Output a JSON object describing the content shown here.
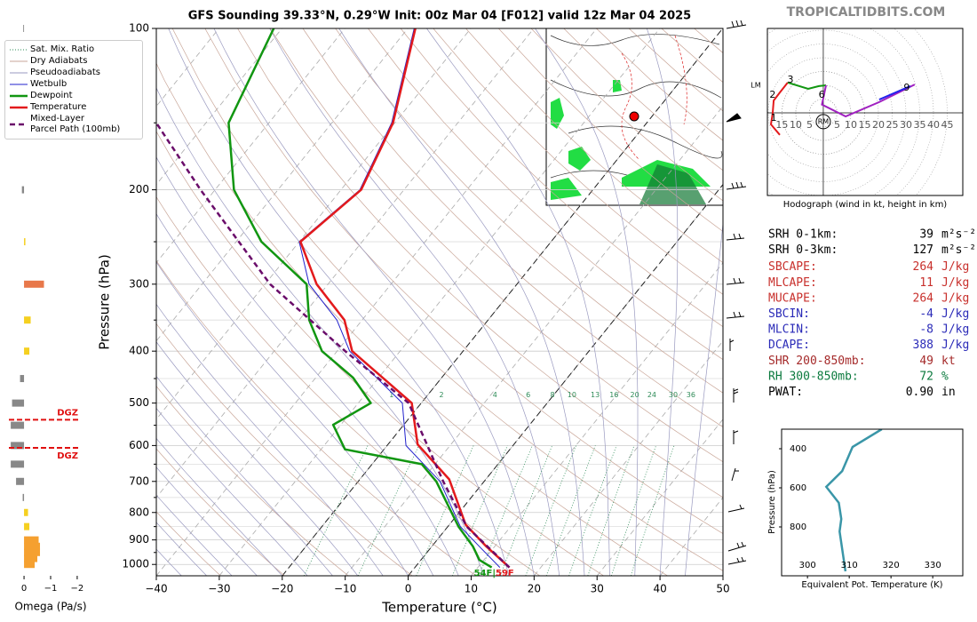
{
  "site": "TROPICALTIDBITS.COM",
  "chart_data": [
    {
      "type": "skewt",
      "title": "GFS Sounding 39.33°N, 0.29°W Init: 00z Mar 04 [F012] valid 12z Mar 04 2025",
      "xlabel": "Temperature (°C)",
      "ylabel": "Pressure (hPa)",
      "xlim": [
        -40,
        50
      ],
      "xticks": [
        {
          "value": -40,
          "label": "−40"
        },
        {
          "value": -30,
          "label": "−30"
        },
        {
          "value": -20,
          "label": "−20"
        },
        {
          "value": -10,
          "label": "−10"
        },
        0,
        10,
        20,
        30,
        40,
        50
      ],
      "ylim": [
        1050,
        100
      ],
      "log_y": true,
      "yticks": [
        100,
        200,
        300,
        400,
        500,
        600,
        700,
        800,
        900,
        1000
      ],
      "yticks_minor": [
        150,
        250,
        350,
        450,
        550,
        650,
        750,
        850,
        950
      ],
      "highlight_isotherms": [
        0,
        -20
      ],
      "mixing_ratios": [
        1,
        2,
        4,
        6,
        8,
        10,
        13,
        16,
        20,
        24,
        30,
        36
      ],
      "background": [
        {
          "name": "Sat. Mix. Ratio",
          "color": "#2e8b57",
          "dash": "1,2"
        },
        {
          "name": "Dry Adiabats",
          "color": "#c9a698",
          "dash": ""
        },
        {
          "name": "Pseudoadiabats",
          "color": "#9a9ac0",
          "dash": ""
        }
      ],
      "series": [
        {
          "name": "Wetbulb",
          "color": "#2222cc",
          "width": 1,
          "dash": "",
          "pressure": [
            1013,
            925,
            850,
            700,
            600,
            500,
            400,
            350,
            300,
            250,
            200,
            150,
            100
          ],
          "values": [
            13.5,
            7.5,
            2,
            -7,
            -17,
            -23,
            -38,
            -44,
            -53,
            -60,
            -57,
            -60.5,
            -69
          ]
        },
        {
          "name": "Dewpoint",
          "color": "#119611",
          "width": 2.5,
          "dash": "",
          "pressure": [
            1013,
            981,
            925,
            850,
            700,
            650,
            610,
            549,
            500,
            448,
            400,
            350,
            300,
            250,
            200,
            150,
            100
          ],
          "values": [
            12.2,
            9.3,
            6.5,
            1.7,
            -7.6,
            -12.1,
            -26.2,
            -31.2,
            -28,
            -34.1,
            -42.4,
            -48.4,
            -53.4,
            -66,
            -77,
            -86.4,
            -91.3
          ]
        },
        {
          "name": "Temperature",
          "color": "#e31a1c",
          "width": 2.5,
          "dash": "",
          "pressure": [
            1013,
            926,
            843,
            694,
            597,
            500,
            400,
            350,
            300,
            250,
            200,
            150,
            100
          ],
          "values": [
            15,
            8.7,
            2.6,
            -5.8,
            -15.3,
            -21.5,
            -37.6,
            -42.8,
            -51.8,
            -59.8,
            -56.8,
            -60.3,
            -68.8
          ]
        },
        {
          "name": "Mixed-Layer\nParcel Path (100mb)",
          "color": "#6a0d6a",
          "width": 2.5,
          "dash": "6,4",
          "pressure": [
            1013,
            850,
            700,
            500,
            400,
            300,
            200,
            150
          ],
          "values": [
            15,
            3,
            -6.5,
            -22,
            -38.7,
            -59.2,
            -82.3,
            -97.9
          ]
        }
      ],
      "surface_dewpoint_label": "54F|",
      "surface_temperature_label": "59F"
    },
    {
      "type": "bar",
      "xlabel": "Omega (Pa/s)",
      "xlim": [
        0.57,
        -2.27
      ],
      "ylim": [
        1050,
        100
      ],
      "xticks": [
        0,
        {
          "value": -1,
          "label": "−1"
        },
        {
          "value": -2,
          "label": "−2"
        }
      ],
      "pressure": [
        100,
        150,
        200,
        250,
        300,
        350,
        400,
        450,
        500,
        550,
        600,
        650,
        700,
        750,
        800,
        850,
        900,
        925,
        950,
        975,
        1000
      ],
      "values": [
        0.03,
        -0.05,
        0.08,
        -0.05,
        -0.75,
        -0.25,
        -0.2,
        0.15,
        0.45,
        0.5,
        0.5,
        0.5,
        0.3,
        0.05,
        -0.15,
        -0.2,
        -0.55,
        -0.6,
        -0.6,
        -0.5,
        -0.4
      ],
      "colors": [
        "#888888",
        "#f5d020",
        "#888888",
        "#f5d020",
        "#e8784a",
        "#f5d020",
        "#f5d020",
        "#888888",
        "#888888",
        "#888888",
        "#888888",
        "#888888",
        "#888888",
        "#888888",
        "#f5d020",
        "#f5d020",
        "#f5a030",
        "#f5a030",
        "#f5a030",
        "#f5a030",
        "#f5a030"
      ],
      "dgz_pressures": [
        537,
        606
      ],
      "dgz_labels": [
        "DGZ",
        "DGZ"
      ],
      "dgz_color": "#e01010"
    },
    {
      "type": "hodograph",
      "caption": "Hodograph (wind in kt, height in km)",
      "xlim": [
        -20.3,
        50.65
      ],
      "ylim": [
        -30,
        30.65
      ],
      "xticks": [
        {
          "value": -15,
          "label": "15"
        },
        {
          "value": -10,
          "label": "10"
        },
        {
          "value": -5,
          "label": "5"
        },
        5,
        10,
        15,
        20,
        25,
        30,
        35,
        40,
        45
      ],
      "segments": [
        {
          "color": "#e31a1c",
          "u": [
            -15.8,
            -19,
            -18.4,
            -18,
            -15.8,
            -12.9
          ],
          "v": [
            -8,
            -4.2,
            -0.3,
            4.5,
            7.4,
            11
          ]
        },
        {
          "color": "#119611",
          "u": [
            -12.9,
            -5.5,
            -1.6,
            1
          ],
          "v": [
            11,
            8.7,
            9.7,
            10
          ]
        },
        {
          "color": "#a020c0",
          "u": [
            1,
            -0.5,
            8.1,
            20.3,
            33.2
          ],
          "v": [
            10,
            3,
            -1.3,
            3.9,
            10.3
          ]
        },
        {
          "color": "#2222ee",
          "u": [
            20.3,
            31.6
          ],
          "v": [
            4.8,
            9.7
          ]
        }
      ],
      "heights": [
        1,
        2,
        3,
        6,
        9
      ],
      "height_u": [
        -18,
        -18.4,
        -11.9,
        -0.6,
        30.3
      ],
      "height_v": [
        -1.9,
        6.5,
        11.9,
        6.5,
        9
      ],
      "rm": {
        "label": "RM",
        "u": 0,
        "v": -3.2
      },
      "lm": {
        "label": "LM",
        "u": -24.5,
        "v": 10
      }
    },
    {
      "type": "line",
      "xlabel": "Equivalent Pot. Temperature (K)",
      "ylabel": "Pressure (hPa)",
      "xlim": [
        293.8,
        337.2
      ],
      "ylim": [
        1050,
        300
      ],
      "xticks": [
        300,
        310,
        320,
        330
      ],
      "yticks": [
        400,
        600,
        800
      ],
      "color": "#3a96a8",
      "pressure": [
        300,
        391,
        514,
        595,
        677,
        759,
        823,
        968,
        1027
      ],
      "values": [
        317.8,
        310.8,
        308.3,
        304.5,
        307.5,
        308.1,
        307.7,
        308.7,
        309.1
      ]
    }
  ],
  "indices": [
    {
      "label": "SRH 0-1km:",
      "value": 39,
      "unit": "m²s⁻²",
      "color": "#000000"
    },
    {
      "label": "SRH 0-3km:",
      "value": 127,
      "unit": "m²s⁻²",
      "color": "#000000"
    },
    {
      "label": "SBCAPE:",
      "value": 264,
      "unit": "J/kg",
      "color": "#c8302c"
    },
    {
      "label": "MLCAPE:",
      "value": 11,
      "unit": "J/kg",
      "color": "#c8302c"
    },
    {
      "label": "MUCAPE:",
      "value": 264,
      "unit": "J/kg",
      "color": "#c8302c"
    },
    {
      "label": "SBCIN:",
      "value": -4,
      "unit": "J/kg",
      "color": "#2b2bb8"
    },
    {
      "label": "MLCIN:",
      "value": -8,
      "unit": "J/kg",
      "color": "#2b2bb8"
    },
    {
      "label": "DCAPE:",
      "value": 388,
      "unit": "J/kg",
      "color": "#2b2bb8"
    },
    {
      "label": "SHR 200-850mb:",
      "value": 49,
      "unit": "kt",
      "color": "#a52a2a"
    },
    {
      "label": "RH 300-850mb:",
      "value": 72,
      "unit": "%",
      "color": "#0b7a3e"
    },
    {
      "label": "PWAT:",
      "value": "0.90",
      "unit": "in",
      "color": "#000000"
    }
  ]
}
